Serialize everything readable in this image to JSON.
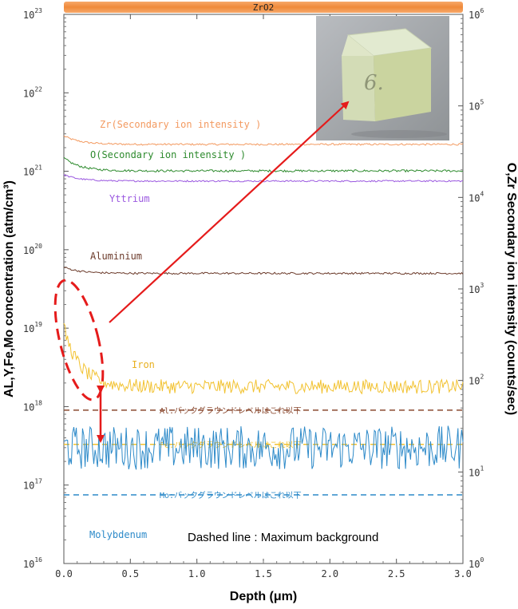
{
  "chart_data": {
    "type": "line",
    "top_bar_label": "ZrO2",
    "xlabel": "Depth (μm)",
    "xlim": [
      0,
      3.0
    ],
    "x_ticks": [
      "0.0",
      "0.5",
      "1.0",
      "1.5",
      "2.0",
      "2.5",
      "3.0"
    ],
    "x_tick_values": [
      0,
      0.5,
      1.0,
      1.5,
      2.0,
      2.5,
      3.0
    ],
    "left_axis": {
      "label": "AL,Y,Fe,Mo concentration (atm/cm³)",
      "scale": "log",
      "ylim": [
        1e+16,
        1e+23
      ],
      "tick_exponents": [
        16,
        17,
        18,
        19,
        20,
        21,
        22,
        23
      ],
      "tick_base": "10"
    },
    "right_axis": {
      "label": "O,Zr Secondary ion intensity (counts/sec)",
      "scale": "log",
      "ylim": [
        1,
        1000000
      ],
      "tick_exponents": [
        0,
        1,
        2,
        3,
        4,
        5,
        6
      ],
      "tick_base": "10"
    },
    "series": [
      {
        "name": "Zr(Secondary ion intensity )",
        "axis": "right",
        "color": "#f39a60",
        "level": 38000,
        "start": 47000,
        "noise": 0.01
      },
      {
        "name": "O(Secondary ion intensity )",
        "axis": "right",
        "color": "#2e8b2e",
        "level": 19500,
        "start": 27000,
        "noise": 0.012
      },
      {
        "name": "Yttrium",
        "axis": "left",
        "color": "#9b59e0",
        "level": 7.5e+20,
        "start": 9e+20,
        "noise": 0.01
      },
      {
        "name": "Aluminium",
        "axis": "left",
        "color": "#6b3a2a",
        "level": 5e+19,
        "start": 6e+19,
        "noise": 0.012
      },
      {
        "name": "Iron",
        "axis": "left",
        "color": "#f2c230",
        "level": 1.8e+18,
        "start": 1e+19,
        "noise": 0.09
      },
      {
        "name": "Molybdenum",
        "axis": "left",
        "color": "#2d8ac9",
        "level": 3e+17,
        "start": 3e+17,
        "noise": 0.28
      }
    ],
    "background_levels": [
      {
        "label": "Al:バックグラウンドレベルはこれ以下",
        "value": 9e+17,
        "color": "#8b4a30"
      },
      {
        "label": "Fe:バックグラウンドレベルはこれ以下",
        "value": 3.3e+17,
        "color": "#f2c230"
      },
      {
        "label": "Mo:バックグラウンドレベルはこれ以下",
        "value": 7.5e+16,
        "color": "#2d8ac9"
      }
    ],
    "annotation": "Dashed line : Maximum background",
    "inset_photo_mark": "6."
  }
}
